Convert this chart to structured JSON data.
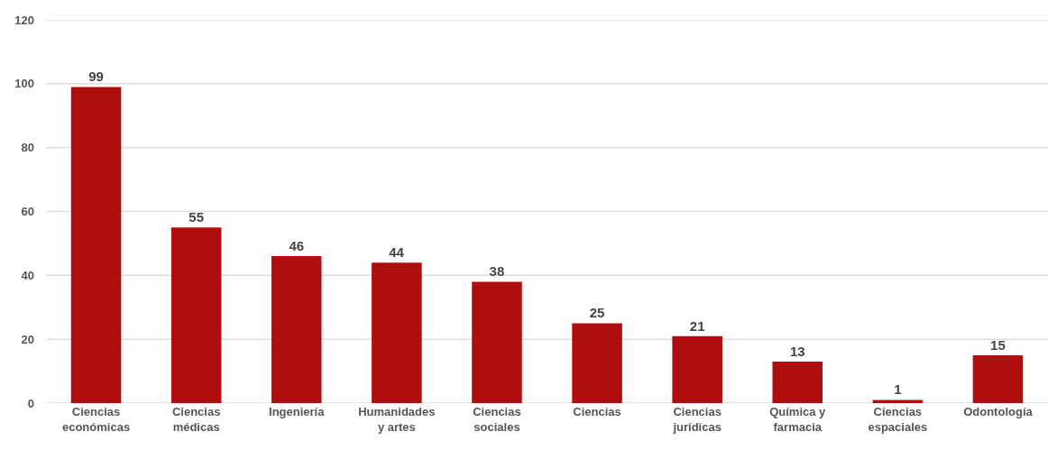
{
  "chart_data": {
    "type": "bar",
    "categories": [
      "Ciencias económicas",
      "Ciencias médicas",
      "Ingeniería",
      "Humanidades y artes",
      "Ciencias sociales",
      "Ciencias",
      "Ciencias jurídicas",
      "Química y farmacia",
      "Ciencias espaciales",
      "Odontología"
    ],
    "values": [
      99,
      55,
      46,
      44,
      38,
      25,
      21,
      13,
      1,
      15
    ],
    "color": "#b00d0e",
    "ylim": [
      0,
      120
    ],
    "yticks": [
      0,
      20,
      40,
      60,
      80,
      100,
      120
    ],
    "grid": "y",
    "data_labels": true
  }
}
